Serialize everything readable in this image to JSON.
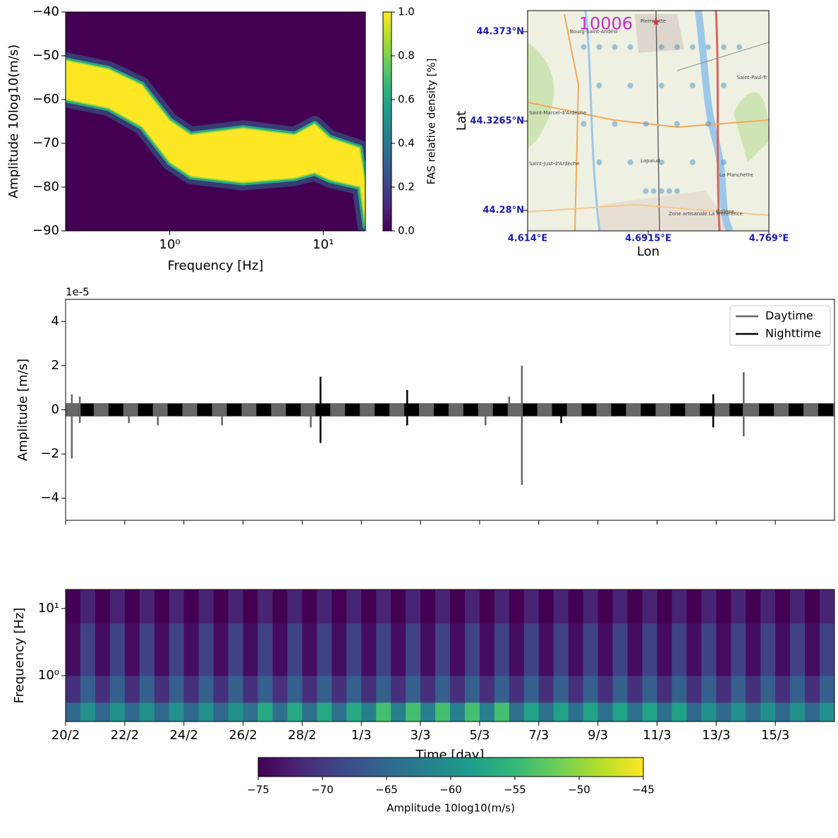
{
  "chart_data": [
    {
      "type": "density",
      "xlabel": "Frequency [Hz]",
      "ylabel": "Amplitude 10log10(m/s)",
      "xscale": "log",
      "xlim": [
        0.21,
        18.8
      ],
      "ylim": [
        -90,
        -40
      ],
      "xticks": [
        {
          "value": 1,
          "label": "10⁰"
        },
        {
          "value": 10,
          "label": "10¹"
        }
      ],
      "yticks": [
        {
          "value": -90,
          "label": "−90"
        },
        {
          "value": -80,
          "label": "−80"
        },
        {
          "value": -70,
          "label": "−70"
        },
        {
          "value": -60,
          "label": "−60"
        },
        {
          "value": -50,
          "label": "−50"
        },
        {
          "value": -40,
          "label": "−40"
        }
      ],
      "x": [
        0.21,
        0.4,
        0.66,
        1,
        1.37,
        3,
        6.5,
        8.8,
        11,
        17.3,
        18.8
      ],
      "upper": [
        -51,
        -53,
        -56.6,
        -64.7,
        -68,
        -66.5,
        -68,
        -65.5,
        -68.7,
        -71,
        -79
      ],
      "lower": [
        -60,
        -62,
        -66.3,
        -74.4,
        -77.6,
        -79,
        -78,
        -76.8,
        -78.4,
        -80,
        -89
      ],
      "colormap": "viridis",
      "colorbar": {
        "label": "FAS relative density [%]",
        "clim": [
          0,
          1
        ],
        "ticks": [
          {
            "value": 0,
            "label": "0.0"
          },
          {
            "value": 0.2,
            "label": "0.2"
          },
          {
            "value": 0.4,
            "label": "0.4"
          },
          {
            "value": 0.6,
            "label": "0.6"
          },
          {
            "value": 0.8,
            "label": "0.8"
          },
          {
            "value": 1,
            "label": "1.0"
          }
        ]
      }
    },
    {
      "type": "map",
      "xlabel": "Lon",
      "ylabel": "Lat",
      "xlim": [
        4.614,
        4.769
      ],
      "ylim": [
        44.2693,
        44.384
      ],
      "xticks": [
        {
          "value": 4.614,
          "label": "4.614°E"
        },
        {
          "value": 4.6915,
          "label": "4.6915°E"
        },
        {
          "value": 4.769,
          "label": "4.769°E"
        }
      ],
      "yticks": [
        {
          "value": 44.28,
          "label": "44.28°N"
        },
        {
          "value": 44.3265,
          "label": "44.3265°N"
        },
        {
          "value": 44.373,
          "label": "44.373°N"
        }
      ],
      "station": {
        "name": "10006",
        "lon": 4.6965,
        "lat": 44.378,
        "color": "#e8202a"
      },
      "sensors": {
        "color": "#4a90c8",
        "lon": [
          4.65,
          4.66,
          4.67,
          4.68,
          4.7,
          4.71,
          4.72,
          4.73,
          4.74,
          4.75,
          4.66,
          4.68,
          4.7,
          4.72,
          4.74,
          4.65,
          4.67,
          4.69,
          4.71,
          4.73,
          4.66,
          4.68,
          4.7,
          4.72,
          4.74,
          4.69,
          4.695,
          4.7,
          4.705,
          4.71
        ],
        "lat": [
          44.365,
          44.365,
          44.365,
          44.365,
          44.365,
          44.365,
          44.365,
          44.365,
          44.365,
          44.365,
          44.345,
          44.345,
          44.345,
          44.345,
          44.345,
          44.325,
          44.325,
          44.325,
          44.325,
          44.325,
          44.305,
          44.305,
          44.305,
          44.305,
          44.305,
          44.29,
          44.29,
          44.29,
          44.29,
          44.29
        ]
      },
      "places": [
        {
          "name": "Pierrelatte",
          "lon": 4.6865,
          "lat": 44.3785
        },
        {
          "name": "Bourg-Saint-Andéol",
          "lon": 4.6412,
          "lat": 44.373
        },
        {
          "name": "Saint-Paul-Tr",
          "lon": 4.7485,
          "lat": 44.349
        },
        {
          "name": "Saint-Marcel-d'Ardèche",
          "lon": 4.6149,
          "lat": 44.3307
        },
        {
          "name": "Saint-Just-d'Ardèche",
          "lon": 4.6149,
          "lat": 44.3042
        },
        {
          "name": "Lapalud",
          "lon": 4.6865,
          "lat": 44.3057
        },
        {
          "name": "La Planchette",
          "lon": 4.7372,
          "lat": 44.2983
        },
        {
          "name": "Bollène",
          "lon": 4.735,
          "lat": 44.2792
        },
        {
          "name": "Zone artisanale La Préférence",
          "lon": 4.7046,
          "lat": 44.2781
        }
      ]
    },
    {
      "type": "line",
      "ylabel": "Amplitude [m/s]",
      "offset_label": "1e-5",
      "xlim": [
        0,
        26
      ],
      "ylim": [
        -5,
        5
      ],
      "xticks": [
        0,
        2,
        4,
        6,
        8,
        10,
        12,
        14,
        16,
        18,
        20,
        22,
        24
      ],
      "xtick_labels": false,
      "yticks": [
        {
          "value": -4,
          "label": "−4"
        },
        {
          "value": -2,
          "label": "−2"
        },
        0,
        2,
        4
      ],
      "legend": "upper right",
      "series": [
        {
          "name": "Daytime",
          "color": "#666666",
          "envelope": 0.3,
          "x": [
            0.21,
            0.21,
            0.48,
            0.48,
            2.14,
            3.12,
            5.29,
            8.29,
            14.2,
            15.0,
            15.43,
            15.43,
            22.93,
            22.93
          ],
          "values": [
            0.7,
            -2.2,
            0.6,
            -0.6,
            -0.6,
            -0.7,
            -0.7,
            -0.8,
            -0.7,
            0.6,
            2.0,
            -3.4,
            1.7,
            -1.2
          ]
        },
        {
          "name": "Nighttime",
          "color": "#000000",
          "envelope": 0.28,
          "segments": [
            [
              0.45,
              0.95
            ],
            [
              1.45,
              1.95
            ],
            [
              2.45,
              2.95
            ],
            [
              3.45,
              3.95
            ],
            [
              4.45,
              4.95
            ],
            [
              5.45,
              5.95
            ],
            [
              6.45,
              6.95
            ],
            [
              7.45,
              7.95
            ],
            [
              8.45,
              8.95
            ],
            [
              9.45,
              9.95
            ],
            [
              10.45,
              10.95
            ],
            [
              11.45,
              11.95
            ],
            [
              12.45,
              12.95
            ],
            [
              13.45,
              13.95
            ],
            [
              14.45,
              14.95
            ],
            [
              15.45,
              15.95
            ],
            [
              16.45,
              16.95
            ],
            [
              17.45,
              17.95
            ],
            [
              18.45,
              18.95
            ],
            [
              19.45,
              19.95
            ],
            [
              20.45,
              20.95
            ],
            [
              21.45,
              21.95
            ],
            [
              22.45,
              22.95
            ],
            [
              23.45,
              23.95
            ],
            [
              24.45,
              24.95
            ],
            [
              25.45,
              25.95
            ]
          ],
          "x": [
            8.62,
            8.62,
            11.55,
            11.55,
            16.76,
            21.9,
            21.9
          ],
          "values": [
            1.5,
            -1.5,
            0.9,
            -0.7,
            -0.6,
            0.7,
            -0.8
          ]
        }
      ]
    },
    {
      "type": "heatmap",
      "xlabel": "Time [day]",
      "ylabel": "Frequency [Hz]",
      "yscale": "log",
      "xlim": [
        0,
        26
      ],
      "ylim": [
        0.207,
        19.2
      ],
      "xticks": [
        {
          "value": 0,
          "label": "20/2"
        },
        {
          "value": 2,
          "label": "22/2"
        },
        {
          "value": 4,
          "label": "24/2"
        },
        {
          "value": 6,
          "label": "26/2"
        },
        {
          "value": 8,
          "label": "28/2"
        },
        {
          "value": 10,
          "label": "1/3"
        },
        {
          "value": 12,
          "label": "3/3"
        },
        {
          "value": 14,
          "label": "5/3"
        },
        {
          "value": 16,
          "label": "7/3"
        },
        {
          "value": 18,
          "label": "9/3"
        },
        {
          "value": 20,
          "label": "11/3"
        },
        {
          "value": 22,
          "label": "13/3"
        },
        {
          "value": 24,
          "label": "15/3"
        }
      ],
      "yticks": [
        {
          "value": 1,
          "label": "10⁰"
        },
        {
          "value": 10,
          "label": "10¹"
        }
      ],
      "ybins": [
        0.207,
        0.4,
        1,
        6,
        19.2
      ],
      "z": [
        [
          -65,
          -60,
          -65,
          -60,
          -65,
          -60,
          -65,
          -60,
          -65,
          -60,
          -65,
          -60,
          -64,
          -57,
          -64,
          -57,
          -64,
          -57,
          -64,
          -57,
          -62,
          -54,
          -62,
          -54,
          -62,
          -54,
          -62,
          -54,
          -62,
          -54,
          -64,
          -58,
          -64,
          -58,
          -64,
          -58,
          -64,
          -58,
          -64,
          -58,
          -64,
          -58,
          -65,
          -60,
          -65,
          -60,
          -65,
          -60,
          -65,
          -60,
          -65,
          -60
        ],
        [
          -71,
          -66,
          -71,
          -66,
          -71,
          -66,
          -71,
          -66,
          -71,
          -66,
          -71,
          -66,
          -71,
          -66,
          -71,
          -66,
          -71,
          -66,
          -71,
          -66,
          -71,
          -66,
          -71,
          -66,
          -71,
          -66,
          -71,
          -66,
          -71,
          -66,
          -71,
          -66,
          -71,
          -66,
          -71,
          -66,
          -71,
          -66,
          -71,
          -66,
          -71,
          -66,
          -71,
          -66,
          -71,
          -66,
          -71,
          -66,
          -71,
          -66,
          -71,
          -66
        ],
        [
          -74,
          -69,
          -74,
          -69,
          -74,
          -69,
          -74,
          -69,
          -74,
          -69,
          -74,
          -69,
          -74,
          -69,
          -74,
          -69,
          -74,
          -69,
          -74,
          -69,
          -74,
          -69,
          -74,
          -69,
          -74,
          -69,
          -74,
          -69,
          -74,
          -69,
          -74,
          -69,
          -74,
          -69,
          -74,
          -69,
          -74,
          -69,
          -74,
          -69,
          -74,
          -69,
          -74,
          -69,
          -74,
          -69,
          -74,
          -69,
          -74,
          -69,
          -74,
          -69
        ],
        [
          -75,
          -72,
          -75,
          -72,
          -75,
          -72,
          -75,
          -72,
          -75,
          -72,
          -75,
          -72,
          -75,
          -72,
          -75,
          -72,
          -75,
          -72,
          -75,
          -72,
          -75,
          -72,
          -75,
          -72,
          -75,
          -72,
          -75,
          -72,
          -75,
          -72,
          -75,
          -72,
          -75,
          -72,
          -75,
          -72,
          -75,
          -72,
          -75,
          -72,
          -75,
          -72,
          -75,
          -72,
          -75,
          -72,
          -75,
          -72,
          -75,
          -72,
          -75,
          -72
        ]
      ],
      "colormap": "viridis",
      "colorbar": {
        "label": "Amplitude 10log10(m/s)",
        "clim": [
          -75,
          -45
        ],
        "ticks": [
          {
            "value": -75,
            "label": "−75"
          },
          {
            "value": -70,
            "label": "−70"
          },
          {
            "value": -65,
            "label": "−65"
          },
          {
            "value": -60,
            "label": "−60"
          },
          {
            "value": -55,
            "label": "−55"
          },
          {
            "value": -50,
            "label": "−50"
          },
          {
            "value": -45,
            "label": "−45"
          }
        ]
      }
    }
  ]
}
